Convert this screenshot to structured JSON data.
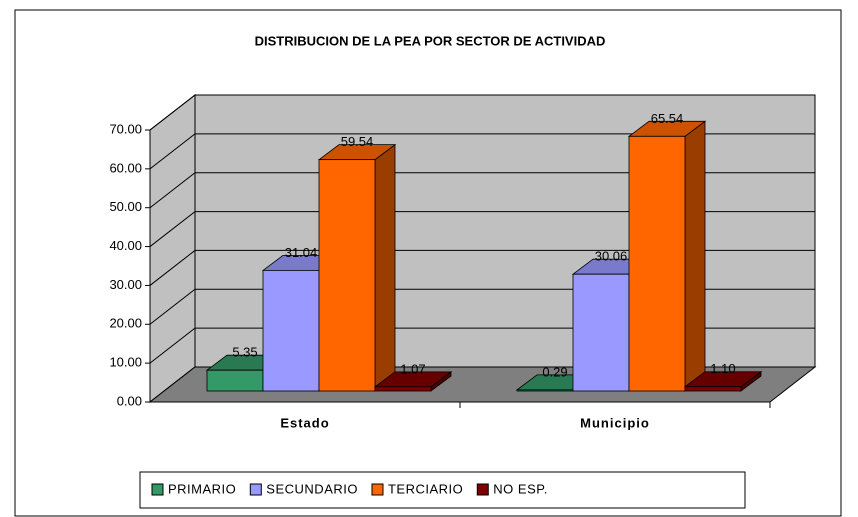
{
  "chart_data": {
    "type": "bar3d",
    "title": "DISTRIBUCION DE LA PEA POR SECTOR DE ACTIVIDAD",
    "categories": [
      "Estado",
      "Municipio"
    ],
    "series": [
      {
        "name": "PRIMARIO",
        "color": "#339966",
        "values": [
          5.35,
          0.29
        ],
        "value_labels": [
          "5.35",
          "0.29"
        ]
      },
      {
        "name": "SECUNDARIO",
        "color": "#9999ff",
        "values": [
          31.04,
          30.06
        ],
        "value_labels": [
          "31.04",
          "30.06"
        ]
      },
      {
        "name": "TERCIARIO",
        "color": "#ff6600",
        "values": [
          59.54,
          65.54
        ],
        "value_labels": [
          "59.54",
          "65.54"
        ]
      },
      {
        "name": "NO ESP.",
        "color": "#800000",
        "values": [
          1.07,
          1.1
        ],
        "value_labels": [
          "1.07",
          "1.10"
        ]
      }
    ],
    "ylim": [
      0,
      70
    ],
    "yticks": [
      {
        "value": 0,
        "label": "0.00"
      },
      {
        "value": 10,
        "label": "10.00"
      },
      {
        "value": 20,
        "label": "20.00"
      },
      {
        "value": 30,
        "label": "30.00"
      },
      {
        "value": 40,
        "label": "40.00"
      },
      {
        "value": 50,
        "label": "50.00"
      },
      {
        "value": 60,
        "label": "60.00"
      },
      {
        "value": 70,
        "label": "70.00"
      }
    ],
    "grid": true,
    "legend": "bottom"
  }
}
